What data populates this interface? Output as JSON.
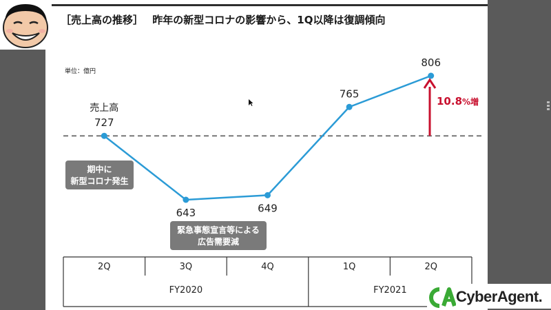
{
  "slide": {
    "title_bracket": "［売上高の推移］",
    "title_text": "昨年の新型コロナの影響から、1Q以降は復調傾向",
    "unit_label": "単位：億円"
  },
  "chart_data": {
    "type": "line",
    "categories": [
      "2Q",
      "3Q",
      "4Q",
      "1Q",
      "2Q"
    ],
    "fiscal_groups": [
      {
        "label": "FY2020",
        "categories": [
          "2Q",
          "3Q",
          "4Q"
        ]
      },
      {
        "label": "FY2021",
        "categories": [
          "1Q",
          "2Q"
        ]
      }
    ],
    "series": [
      {
        "values": [
          727,
          643,
          649,
          765,
          806
        ],
        "color": "#2b9bd6"
      }
    ],
    "series_label": "売上高",
    "reference_line": {
      "value": 727,
      "style": "dashed",
      "color": "#777777"
    },
    "growth_annotation": {
      "value": "10.8",
      "suffix": "%増",
      "color": "#c8102e"
    },
    "callouts": [
      {
        "text_lines": [
          "期中に",
          "新型コロナ発生"
        ]
      },
      {
        "text_lines": [
          "緊急事態宣言等による",
          "広告需要減"
        ]
      }
    ],
    "ylim": [
      600,
      830
    ],
    "grid": false,
    "legend": "none"
  },
  "logo": {
    "text": "CyberAgent.",
    "mark_text": "CA",
    "color": "#3aaa35"
  }
}
